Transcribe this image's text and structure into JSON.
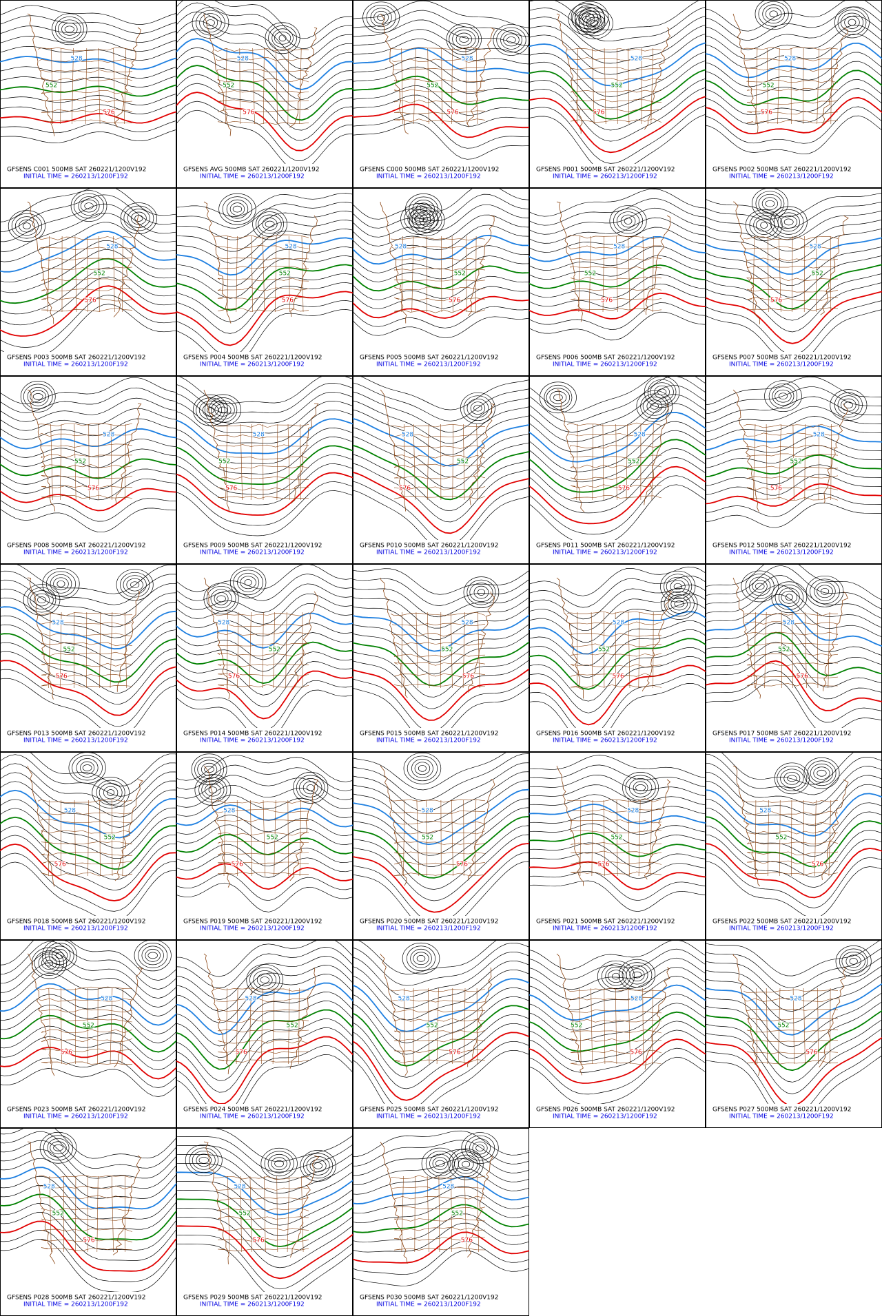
{
  "panels": [
    {
      "title": "GFSENS C001 500MB SAT 260221/1200V192",
      "initial_time": "INITIAL TIME = 260213/1200F192",
      "contour_labels": [
        "528",
        "552",
        "576"
      ]
    },
    {
      "title": "GFSENS AVG 500MB SAT 260221/1200V192",
      "initial_time": "INITIAL TIME = 260213/1200F192",
      "contour_labels": [
        "528",
        "552",
        "576"
      ]
    },
    {
      "title": "GFSENS C000 500MB SAT 260221/1200V192",
      "initial_time": "INITIAL TIME = 260213/1200F192",
      "contour_labels": [
        "528",
        "552",
        "576"
      ]
    },
    {
      "title": "GFSENS P001 500MB SAT 260221/1200V192",
      "initial_time": "INITIAL TIME = 260213/1200F192",
      "contour_labels": [
        "528",
        "552",
        "576"
      ]
    },
    {
      "title": "GFSENS P002 500MB SAT 260221/1200V192",
      "initial_time": "INITIAL TIME = 260213/1200F192",
      "contour_labels": [
        "528",
        "552",
        "576"
      ]
    },
    {
      "title": "GFSENS P003 500MB SAT 260221/1200V192",
      "initial_time": "INITIAL TIME = 260213/1200F192",
      "contour_labels": [
        "528",
        "552",
        "576"
      ]
    },
    {
      "title": "GFSENS P004 500MB SAT 260221/1200V192",
      "initial_time": "INITIAL TIME = 260213/1200F192",
      "contour_labels": [
        "528",
        "552",
        "576"
      ]
    },
    {
      "title": "GFSENS P005 500MB SAT 260221/1200V192",
      "initial_time": "INITIAL TIME = 260213/1200F192",
      "contour_labels": [
        "528",
        "552",
        "576"
      ]
    },
    {
      "title": "GFSENS P006 500MB SAT 260221/1200V192",
      "initial_time": "INITIAL TIME = 260213/1200F192",
      "contour_labels": [
        "528",
        "552",
        "576"
      ]
    },
    {
      "title": "GFSENS P007 500MB SAT 260221/1200V192",
      "initial_time": "INITIAL TIME = 260213/1200F192",
      "contour_labels": [
        "528",
        "552",
        "576"
      ]
    },
    {
      "title": "GFSENS P008 500MB SAT 260221/1200V192",
      "initial_time": "INITIAL TIME = 260213/1200F192",
      "contour_labels": [
        "528",
        "552",
        "576"
      ]
    },
    {
      "title": "GFSENS P009 500MB SAT 260221/1200V192",
      "initial_time": "INITIAL TIME = 260213/1200F192",
      "contour_labels": [
        "528",
        "552",
        "576"
      ]
    },
    {
      "title": "GFSENS P010 500MB SAT 260221/1200V192",
      "initial_time": "INITIAL TIME = 260213/1200F192",
      "contour_labels": [
        "528",
        "552",
        "576"
      ]
    },
    {
      "title": "GFSENS P011 500MB SAT 260221/1200V192",
      "initial_time": "INITIAL TIME = 260213/1200F192",
      "contour_labels": [
        "528",
        "552",
        "576"
      ]
    },
    {
      "title": "GFSENS P012 500MB SAT 260221/1200V192",
      "initial_time": "INITIAL TIME = 260213/1200F192",
      "contour_labels": [
        "528",
        "552",
        "576"
      ]
    },
    {
      "title": "GFSENS P013 500MB SAT 260221/1200V192",
      "initial_time": "INITIAL TIME = 260213/1200F192",
      "contour_labels": [
        "528",
        "552",
        "576"
      ]
    },
    {
      "title": "GFSENS P014 500MB SAT 260221/1200V192",
      "initial_time": "INITIAL TIME = 260213/1200F192",
      "contour_labels": [
        "528",
        "552",
        "576"
      ]
    },
    {
      "title": "GFSENS P015 500MB SAT 260221/1200V192",
      "initial_time": "INITIAL TIME = 260213/1200F192",
      "contour_labels": [
        "528",
        "552",
        "576"
      ]
    },
    {
      "title": "GFSENS P016 500MB SAT 260221/1200V192",
      "initial_time": "INITIAL TIME = 260213/1200F192",
      "contour_labels": [
        "528",
        "552",
        "576"
      ]
    },
    {
      "title": "GFSENS P017 500MB SAT 260221/1200V192",
      "initial_time": "INITIAL TIME = 260213/1200F192",
      "contour_labels": [
        "528",
        "552",
        "576"
      ]
    },
    {
      "title": "GFSENS P018 500MB SAT 260221/1200V192",
      "initial_time": "INITIAL TIME = 260213/1200F192",
      "contour_labels": [
        "528",
        "552",
        "576"
      ]
    },
    {
      "title": "GFSENS P019 500MB SAT 260221/1200V192",
      "initial_time": "INITIAL TIME = 260213/1200F192",
      "contour_labels": [
        "528",
        "552",
        "576"
      ]
    },
    {
      "title": "GFSENS P020 500MB SAT 260221/1200V192",
      "initial_time": "INITIAL TIME = 260213/1200F192",
      "contour_labels": [
        "528",
        "552",
        "576"
      ]
    },
    {
      "title": "GFSENS P021 500MB SAT 260221/1200V192",
      "initial_time": "INITIAL TIME = 260213/1200F192",
      "contour_labels": [
        "528",
        "552",
        "576"
      ]
    },
    {
      "title": "GFSENS P022 500MB SAT 260221/1200V192",
      "initial_time": "INITIAL TIME = 260213/1200F192",
      "contour_labels": [
        "528",
        "552",
        "576"
      ]
    },
    {
      "title": "GFSENS P023 500MB SAT 260221/1200V192",
      "initial_time": "INITIAL TIME = 260213/1200F192",
      "contour_labels": [
        "528",
        "552",
        "576"
      ]
    },
    {
      "title": "GFSENS P024 500MB SAT 260221/1200V192",
      "initial_time": "INITIAL TIME = 260213/1200F192",
      "contour_labels": [
        "528",
        "552",
        "576"
      ]
    },
    {
      "title": "GFSENS P025 500MB SAT 260221/1200V192",
      "initial_time": "INITIAL TIME = 260213/1200F192",
      "contour_labels": [
        "528",
        "552",
        "576"
      ]
    },
    {
      "title": "GFSENS P026 500MB SAT 260221/1200V192",
      "initial_time": "INITIAL TIME = 260213/1200F192",
      "contour_labels": [
        "528",
        "552",
        "576"
      ]
    },
    {
      "title": "GFSENS P027 500MB SAT 260221/1200V192",
      "initial_time": "INITIAL TIME = 260213/1200F192",
      "contour_labels": [
        "528",
        "552",
        "576"
      ]
    },
    {
      "title": "GFSENS P028 500MB SAT 260221/1200V192",
      "initial_time": "INITIAL TIME = 260213/1200F192",
      "contour_labels": [
        "528",
        "552",
        "576"
      ]
    },
    {
      "title": "GFSENS P029 500MB SAT 260221/1200V192",
      "initial_time": "INITIAL TIME = 260213/1200F192",
      "contour_labels": [
        "528",
        "552",
        "576"
      ]
    },
    {
      "title": "GFSENS P030 500MB SAT 260221/1200V192",
      "initial_time": "INITIAL TIME = 260213/1200F192",
      "contour_labels": [
        "528",
        "552",
        "576"
      ]
    }
  ]
}
